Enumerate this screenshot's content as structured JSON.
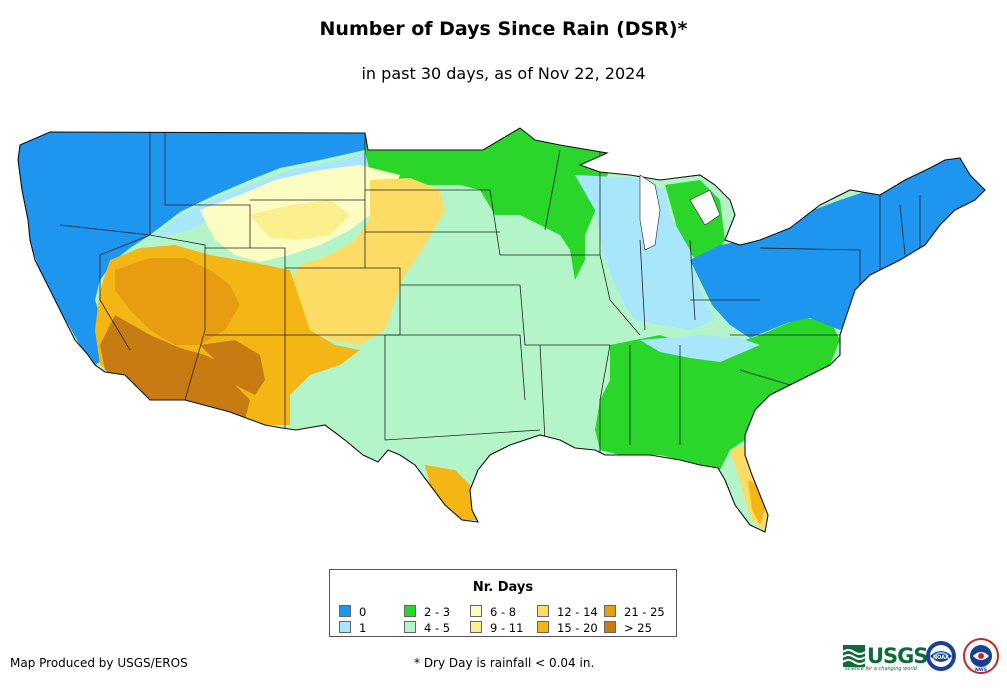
{
  "header": {
    "title": "Number of Days Since Rain (DSR)*",
    "subtitle": "in past 30 days, as of Nov 22, 2024"
  },
  "legend": {
    "title": "Nr. Days",
    "classes": [
      {
        "label": "0",
        "color": "#1e96ef"
      },
      {
        "label": "1",
        "color": "#a8e7fb"
      },
      {
        "label": "2 - 3",
        "color": "#2ad62a"
      },
      {
        "label": "4 - 5",
        "color": "#b3f5c9"
      },
      {
        "label": "6 - 8",
        "color": "#fcfcc3"
      },
      {
        "label": "9 - 11",
        "color": "#fbf08d"
      },
      {
        "label": "12 - 14",
        "color": "#fcdc64"
      },
      {
        "label": "15 - 20",
        "color": "#f3b615"
      },
      {
        "label": "21 - 25",
        "color": "#e89c12"
      },
      {
        "label": "> 25",
        "color": "#c67c13"
      }
    ]
  },
  "footer": {
    "credit": "Map Produced by USGS/EROS",
    "footnote": "* Dry Day is rainfall < 0.04 in.",
    "usgs_logo_text": "USGS",
    "usgs_tagline": "science for a changing world",
    "noaa_logo_text": "NOAA",
    "nws_logo_text": "NWS"
  },
  "map": {
    "region": "Contiguous United States",
    "dsr_regions": [
      {
        "name": "Pacific Northwest",
        "class": "0"
      },
      {
        "name": "California coast",
        "class": "0"
      },
      {
        "name": "Northeast",
        "class": "0"
      },
      {
        "name": "Ohio Valley",
        "class": "0"
      },
      {
        "name": "Northern Rockies",
        "class": "1"
      },
      {
        "name": "Illinois / Indiana",
        "class": "1"
      },
      {
        "name": "Upper Midwest",
        "class": "2 - 3"
      },
      {
        "name": "Southeast",
        "class": "2 - 3"
      },
      {
        "name": "Southern Plains",
        "class": "4 - 5"
      },
      {
        "name": "Central Plains",
        "class": "4 - 5"
      },
      {
        "name": "Wyoming",
        "class": "6 - 8"
      },
      {
        "name": "Colorado Front Range",
        "class": "12 - 14"
      },
      {
        "name": "Florida peninsula",
        "class": "12 - 14"
      },
      {
        "name": "New Mexico",
        "class": "15 - 20"
      },
      {
        "name": "South Texas",
        "class": "15 - 20"
      },
      {
        "name": "Nevada / Utah",
        "class": "21 - 25"
      },
      {
        "name": "Arizona / SE California",
        "class": "> 25"
      }
    ]
  }
}
